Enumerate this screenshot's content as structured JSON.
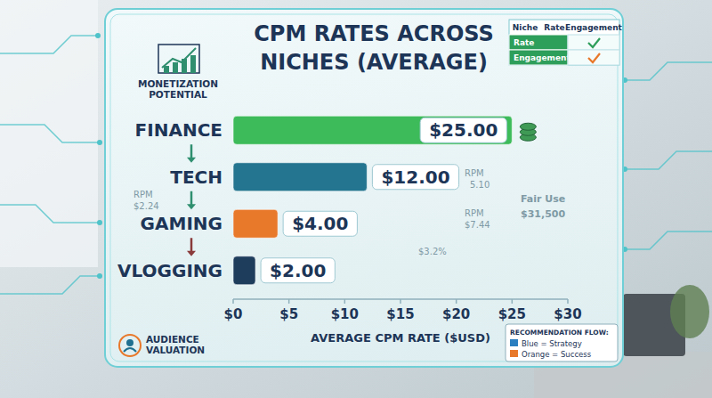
{
  "chart_data": {
    "type": "bar",
    "orientation": "horizontal",
    "title": "CPM RATES ACROSS NICHES (AVERAGE)",
    "categories": [
      "FINANCE",
      "TECH",
      "GAMING",
      "VLOGGING"
    ],
    "values": [
      25,
      12,
      4,
      2
    ],
    "value_labels": [
      "$25.00",
      "$12.00",
      "$4.00",
      "$2.00"
    ],
    "colors": [
      "#3dbb5a",
      "#24758f",
      "#e8782a",
      "#1e3d5c"
    ],
    "data_labels": true,
    "grid": false,
    "xlim": [
      0,
      30
    ],
    "xticks": [
      {
        "value": 0,
        "label": "$0"
      },
      {
        "value": 5,
        "label": "$5"
      },
      {
        "value": 10,
        "label": "$10"
      },
      {
        "value": 15,
        "label": "$15"
      },
      {
        "value": 20,
        "label": "$20"
      },
      {
        "value": 25,
        "label": "$25"
      },
      {
        "value": 30,
        "label": "$30"
      }
    ],
    "x_label": "AVERAGE CPM RATE ($USD)",
    "annotations": [
      "MONETIZATION POTENTIAL",
      "AUDIENCE VALUATION",
      "Niche",
      "Rate",
      "Engagement",
      "Rate",
      "Engagement",
      "RECOMMENDATION FLOW:",
      "Blue = Strategy",
      "Orange = Success",
      "RPM",
      "$2.24",
      "RPM",
      "5.10",
      "RPM",
      "$7.44",
      "$3.2%",
      "Fair Use",
      "$31,500"
    ]
  }
}
